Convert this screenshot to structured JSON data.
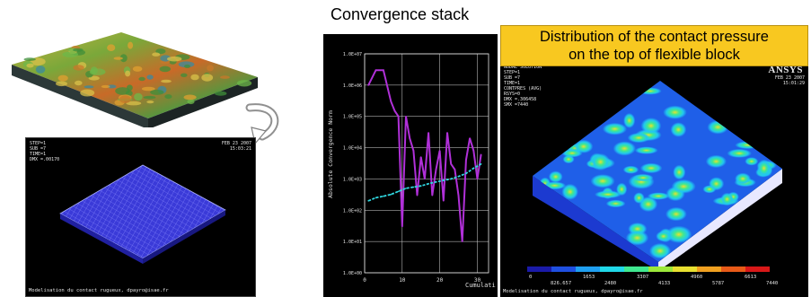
{
  "title": "Convergence stack",
  "callout": {
    "line1": "Distribution of the contact pressure",
    "line2": "on the top of flexible block"
  },
  "ansys_logo": "ANSYS",
  "mesh_panel": {
    "header": [
      "STEP=1",
      "SUB =7",
      "TIME=1",
      "DMX =.00170"
    ],
    "header_right": [
      "FEB 23 2007",
      "15:03:21"
    ],
    "footer": "Modelisation du contact rugueux, dpayro@isae.fr"
  },
  "pressure_panel": {
    "header": [
      "NODAL SOLUTION",
      "",
      "STEP=1",
      "SUB =7",
      "TIME=1",
      "CONTPRES (AVG)",
      "RSYS=0",
      "DMX =.306458",
      "SMX =7440"
    ],
    "header_right": [
      "FEB 23 2007",
      "15:01:29"
    ],
    "legend_top": [
      "0",
      "1653",
      "3307",
      "4960",
      "6613"
    ],
    "legend_bottom": [
      "826.657",
      "2480",
      "4133",
      "5787",
      "7440"
    ],
    "legend_colors": [
      "#1a1aa8",
      "#1f4fe0",
      "#1f9ff0",
      "#20d8e8",
      "#40e890",
      "#9ce83a",
      "#e8e030",
      "#f0a020",
      "#e85a18",
      "#d81818"
    ],
    "footer": "Modelisation du contact rugueux, dpayro@isae.fr"
  },
  "convergence_plot": {
    "ylabel": "Absolute Convergence Norm",
    "xlabel": "Cumulati",
    "yticks": [
      "1.0E+07",
      "1.0E+06",
      "1.0E+05",
      "1.0E+04",
      "1.0E+03",
      "1.0E+02",
      "1.0E+01",
      "1.0E+00"
    ],
    "xticks": [
      "0",
      "10",
      "20",
      "30"
    ]
  },
  "chart_data": {
    "type": "line",
    "xlabel": "Cumulati",
    "ylabel": "Absolute Convergence Norm",
    "ylog": true,
    "xlim": [
      0,
      33
    ],
    "ylim": [
      1,
      10000000
    ],
    "grid": true,
    "series": [
      {
        "color": "#b030d8",
        "x": [
          1,
          3,
          5,
          7,
          8,
          9,
          10,
          11,
          12,
          13,
          14,
          15,
          16,
          17,
          18,
          19,
          20,
          21,
          22,
          23,
          24,
          25,
          26,
          27,
          28,
          29,
          30,
          31
        ],
        "y": [
          1000000,
          3000000,
          3000000,
          300000,
          150000,
          100000,
          30,
          100000,
          20000,
          8000,
          300,
          5000,
          1000,
          30000,
          300,
          2000,
          8000,
          200,
          30000,
          3000,
          2000,
          300,
          10,
          4000,
          20000,
          8000,
          1000,
          6000
        ]
      },
      {
        "color": "#30d8e0",
        "x": [
          1,
          3,
          5,
          7,
          9,
          11,
          13,
          15,
          17,
          19,
          21,
          23,
          25,
          27,
          29,
          31
        ],
        "y": [
          200,
          250,
          280,
          320,
          400,
          500,
          550,
          600,
          700,
          800,
          900,
          1000,
          1200,
          1500,
          2200,
          3000
        ]
      }
    ]
  }
}
